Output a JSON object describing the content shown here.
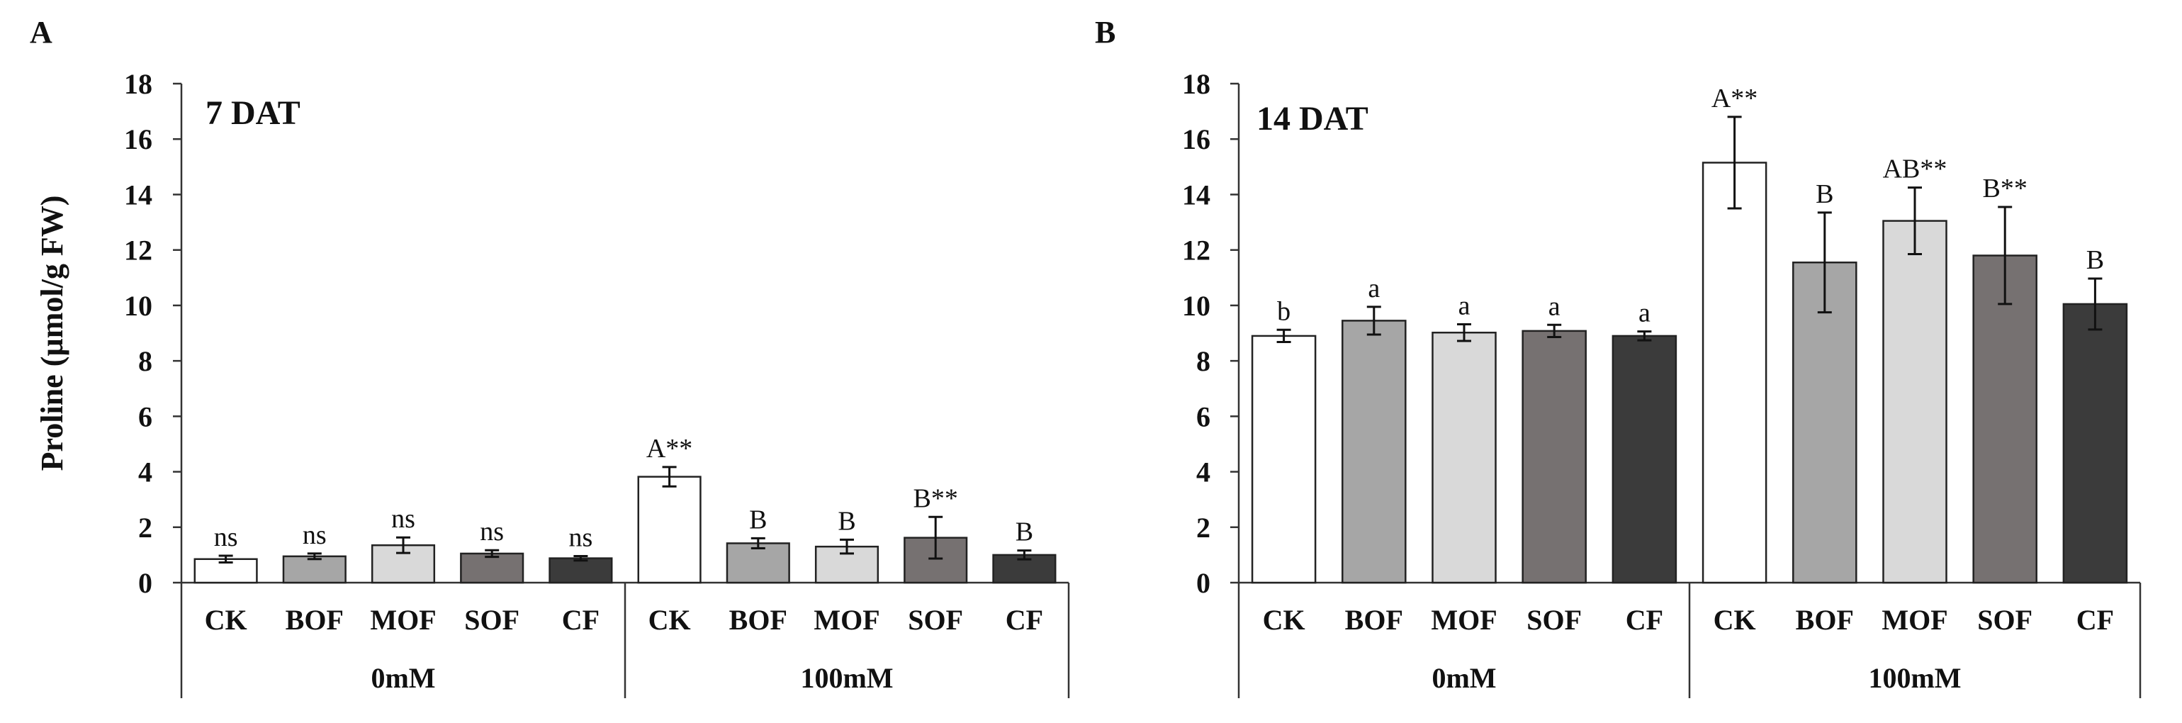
{
  "figure": {
    "ylabel": "Proline (µmol/g FW)",
    "y_ticks": [
      "0",
      "2",
      "4",
      "6",
      "8",
      "10",
      "12",
      "14",
      "16",
      "18"
    ]
  },
  "chart_data": [
    {
      "type": "bar",
      "panel_letter": "A",
      "title": "7 DAT",
      "ylabel": "Proline (µmol/g FW)",
      "ylim": [
        0,
        18
      ],
      "categories": [
        "CK",
        "BOF",
        "MOF",
        "SOF",
        "CF",
        "CK",
        "BOF",
        "MOF",
        "SOF",
        "CF"
      ],
      "groups": [
        {
          "label": "0mM",
          "start": 0,
          "count": 5
        },
        {
          "label": "100mM",
          "start": 5,
          "count": 5
        }
      ],
      "values": [
        0.85,
        0.95,
        1.35,
        1.05,
        0.88,
        3.82,
        1.42,
        1.3,
        1.62,
        1.0
      ],
      "errors": [
        0.12,
        0.1,
        0.28,
        0.12,
        0.08,
        0.35,
        0.18,
        0.25,
        0.75,
        0.16
      ],
      "annotations": [
        "ns",
        "ns",
        "ns",
        "ns",
        "ns",
        "A**",
        "B",
        "B",
        "B**",
        "B"
      ],
      "colors": [
        "#ffffff",
        "#a6a6a6",
        "#d9d9d9",
        "#767171",
        "#3b3b3b",
        "#ffffff",
        "#a6a6a6",
        "#d9d9d9",
        "#767171",
        "#3b3b3b"
      ]
    },
    {
      "type": "bar",
      "panel_letter": "B",
      "title": "14 DAT",
      "ylabel": "",
      "ylim": [
        0,
        18
      ],
      "categories": [
        "CK",
        "BOF",
        "MOF",
        "SOF",
        "CF",
        "CK",
        "BOF",
        "MOF",
        "SOF",
        "CF"
      ],
      "groups": [
        {
          "label": "0mM",
          "start": 0,
          "count": 5
        },
        {
          "label": "100mM",
          "start": 5,
          "count": 5
        }
      ],
      "values": [
        8.9,
        9.45,
        9.02,
        9.08,
        8.9,
        15.15,
        11.55,
        13.05,
        11.8,
        10.05
      ],
      "errors": [
        0.22,
        0.5,
        0.3,
        0.22,
        0.16,
        1.65,
        1.8,
        1.2,
        1.75,
        0.92
      ],
      "annotations": [
        "b",
        "a",
        "a",
        "a",
        "a",
        "A**",
        "B",
        "AB**",
        "B**",
        "B"
      ],
      "colors": [
        "#ffffff",
        "#a6a6a6",
        "#d9d9d9",
        "#767171",
        "#3b3b3b",
        "#ffffff",
        "#a6a6a6",
        "#d9d9d9",
        "#767171",
        "#3b3b3b"
      ]
    }
  ]
}
